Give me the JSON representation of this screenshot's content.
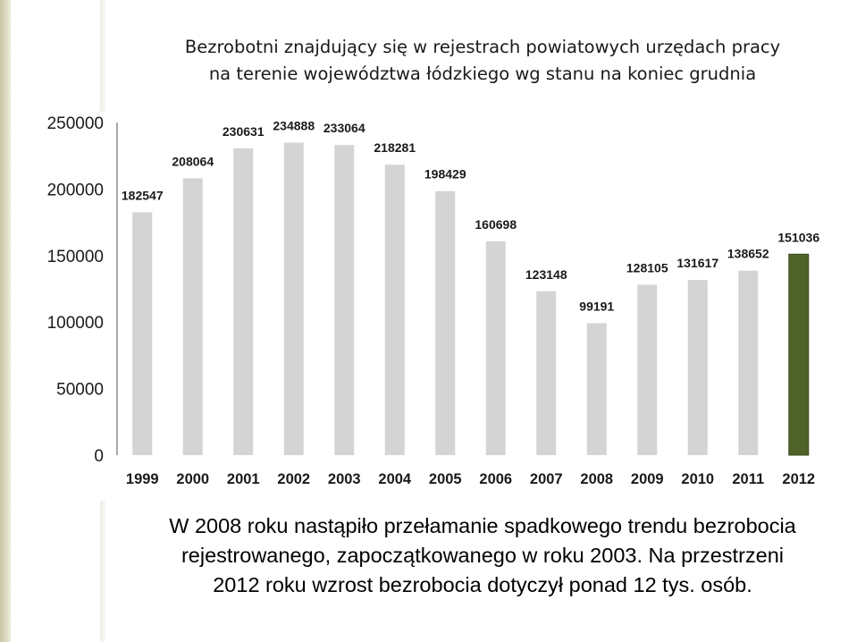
{
  "chart_data": {
    "type": "bar",
    "title": [
      "Bezrobotni znajdujący się w rejestrach powiatowych urzędach pracy",
      "na terenie województwa łódzkiego wg stanu na koniec grudnia"
    ],
    "categories": [
      "1999",
      "2000",
      "2001",
      "2002",
      "2003",
      "2004",
      "2005",
      "2006",
      "2007",
      "2008",
      "2009",
      "2010",
      "2011",
      "2012"
    ],
    "values": [
      182547,
      208064,
      230631,
      234888,
      233064,
      218281,
      198429,
      160698,
      123148,
      99191,
      128105,
      131617,
      138652,
      151036
    ],
    "value_labels": [
      "182547",
      "208064",
      "230631",
      "234888",
      "233064",
      "218281",
      "198429",
      "160698",
      "123148",
      "99191",
      "128105",
      "131617",
      "138652",
      "151036"
    ],
    "y_tick_labels": [
      "0",
      "50000",
      "100000",
      "150000",
      "200000",
      "250000"
    ],
    "y_ticks": [
      0,
      50000,
      100000,
      150000,
      200000,
      250000
    ],
    "ylim": [
      0,
      250000
    ],
    "xlabel": "",
    "ylabel": "",
    "grid": false,
    "legend": "none",
    "colors": {
      "bar": "#d4d4d4",
      "highlight_bar": "#4f6228",
      "highlight_bar_border": "#3a4a1c",
      "axis": "#555555"
    },
    "highlight_index": 13
  },
  "caption": [
    "W 2008 roku nastąpiło przełamanie spadkowego trendu bezrobocia",
    "rejestrowanego, zapoczątkowanego w roku 2003.  Na przestrzeni",
    "2012 roku wzrost bezrobocia dotyczył  ponad 12 tys. osób."
  ]
}
